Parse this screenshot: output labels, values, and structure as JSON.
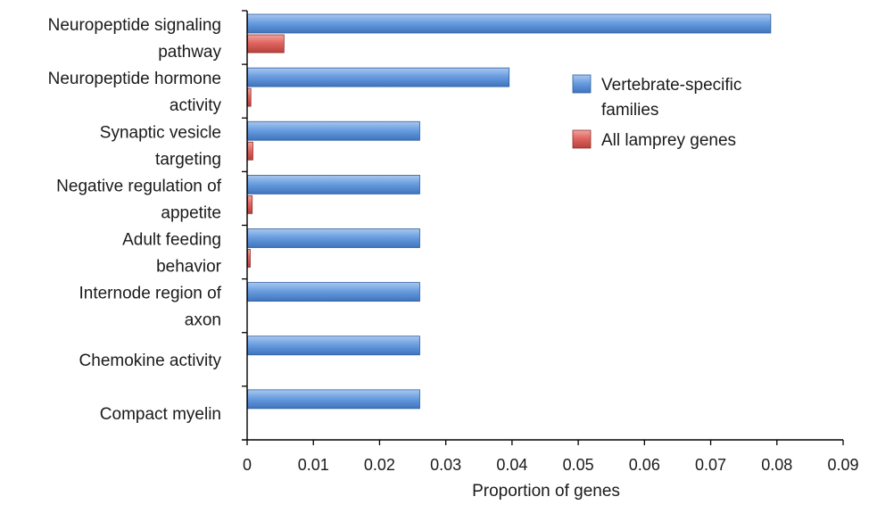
{
  "chart_data": {
    "type": "bar",
    "orientation": "horizontal",
    "categories": [
      [
        "Neuropeptide signaling",
        "pathway"
      ],
      [
        "Neuropeptide hormone",
        "activity"
      ],
      [
        "Synaptic vesicle",
        "targeting"
      ],
      [
        "Negative regulation of",
        "appetite"
      ],
      [
        "Adult feeding",
        "behavior"
      ],
      [
        "Internode region of",
        "axon"
      ],
      [
        "Chemokine activity"
      ],
      [
        "Compact myelin"
      ]
    ],
    "series": [
      {
        "name": "Vertebrate-specific families",
        "legend_lines": [
          "Vertebrate-specific",
          "families"
        ],
        "color": "#5b8fd4",
        "values": [
          0.079,
          0.0395,
          0.026,
          0.026,
          0.026,
          0.026,
          0.026,
          0.026
        ]
      },
      {
        "name": "All lamprey genes",
        "legend_lines": [
          "All lamprey genes"
        ],
        "color": "#d9534f",
        "values": [
          0.0055,
          0.0005,
          0.0008,
          0.0007,
          0.0004,
          0.0,
          0.0,
          0.0
        ]
      }
    ],
    "xlabel": "Proportion of genes",
    "ylabel": "",
    "xlim": [
      0,
      0.09
    ],
    "xticks": [
      "0",
      "0.01",
      "0.02",
      "0.03",
      "0.04",
      "0.05",
      "0.06",
      "0.07",
      "0.08",
      "0.09"
    ],
    "grid": false,
    "legend_position": "right"
  }
}
